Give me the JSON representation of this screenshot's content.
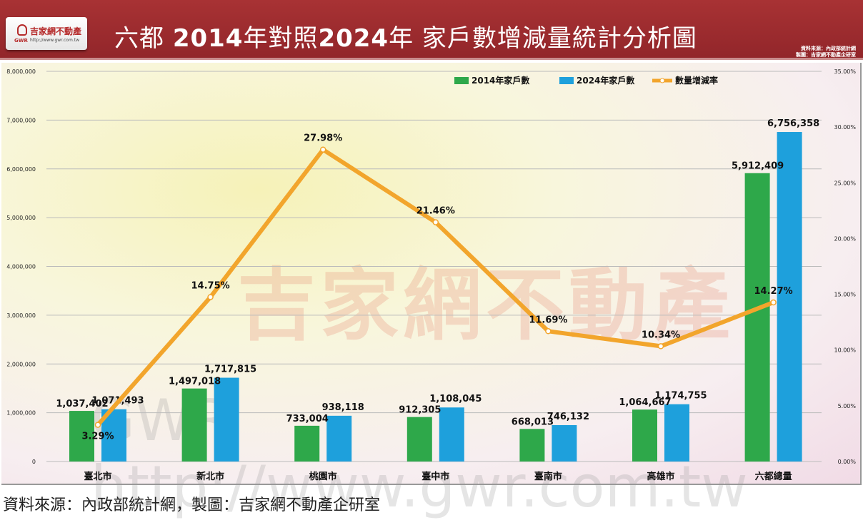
{
  "header": {
    "logo_name": "吉家網不動產",
    "logo_url": "http://www.gwr.com.tw",
    "logo_abbr": "GWR",
    "title_a": "六都 ",
    "title_b": "2014",
    "title_c": "年對照",
    "title_d": "2024",
    "title_e": "年 家戶數增減量統計分析圖",
    "source_line1": "資料來源：內政部統計網",
    "source_line2": "製圖：吉家網不動產企研室"
  },
  "watermark": {
    "name": "吉家網不動產",
    "url": "GWR http://www.gwr.com.tw"
  },
  "caption": "資料來源：內政部統計網，製圖：吉家網不動產企研室",
  "colors": {
    "green": "#2ea84a",
    "blue": "#1ea0dc",
    "orange": "#f2a52c"
  },
  "chart_data": {
    "type": "bar+line",
    "title": "六都 2014年對照2024年 家戶數增減量統計分析圖",
    "categories": [
      "臺北市",
      "新北市",
      "桃園市",
      "臺中市",
      "臺南市",
      "高雄市",
      "六都總量"
    ],
    "series": [
      {
        "name": "2014年家戶數",
        "type": "bar",
        "axis": "left",
        "values": [
          1037402,
          1497018,
          733004,
          912305,
          668013,
          1064667,
          5912409
        ],
        "labels": [
          "1,037,402",
          "1,497,018",
          "733,004",
          "912,305",
          "668,013",
          "1,064,667",
          "5,912,409"
        ]
      },
      {
        "name": "2024年家戶數",
        "type": "bar",
        "axis": "left",
        "values": [
          1071493,
          1717815,
          938118,
          1108045,
          746132,
          1174755,
          6756358
        ],
        "labels": [
          "1,071,493",
          "1,717,815",
          "938,118",
          "1,108,045",
          "746,132",
          "1,174,755",
          "6,756,358"
        ]
      },
      {
        "name": "數量增減率",
        "type": "line",
        "axis": "right",
        "values": [
          3.29,
          14.75,
          27.98,
          21.46,
          11.69,
          10.34,
          14.27
        ],
        "labels": [
          "3.29%",
          "14.75%",
          "27.98%",
          "21.46%",
          "11.69%",
          "10.34%",
          "14.27%"
        ]
      }
    ],
    "y_left": {
      "range": [
        0,
        8000000
      ],
      "ticks": [
        "0",
        "1,000,000",
        "2,000,000",
        "3,000,000",
        "4,000,000",
        "5,000,000",
        "6,000,000",
        "7,000,000",
        "8,000,000"
      ]
    },
    "y_right": {
      "range": [
        0,
        35
      ],
      "ticks": [
        "0.00%",
        "5.00%",
        "10.00%",
        "15.00%",
        "20.00%",
        "25.00%",
        "30.00%",
        "35.00%"
      ]
    },
    "grid": true,
    "legend": "top-right"
  }
}
